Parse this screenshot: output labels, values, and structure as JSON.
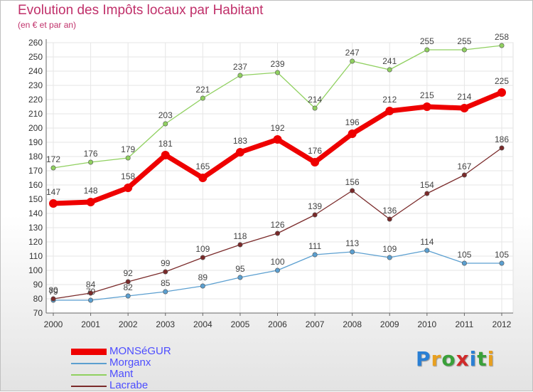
{
  "title": "Evolution des Impôts locaux par Habitant",
  "subtitle": "(en € et par an)",
  "logo": {
    "text": "Proxiti",
    "colors": [
      "#2a7fd4",
      "#e8a020",
      "#3aa03a",
      "#d02a2a",
      "#2a7fd4",
      "#3aa03a",
      "#e8a020"
    ]
  },
  "chart_data": {
    "type": "line",
    "x": [
      2000,
      2001,
      2002,
      2003,
      2004,
      2005,
      2006,
      2007,
      2008,
      2009,
      2010,
      2011,
      2012
    ],
    "ylim": [
      70,
      260
    ],
    "yticks": [
      70,
      80,
      90,
      100,
      110,
      120,
      130,
      140,
      150,
      160,
      170,
      180,
      190,
      200,
      210,
      220,
      230,
      240,
      250,
      260
    ],
    "grid": true,
    "legend_position": "bottom-left",
    "series": [
      {
        "name": "MONSéGUR",
        "color": "#ee0000",
        "values": [
          147,
          148,
          158,
          181,
          165,
          183,
          192,
          176,
          196,
          212,
          215,
          214,
          225
        ]
      },
      {
        "name": "Morganx",
        "color": "#5b9fd0",
        "values": [
          79,
          79,
          82,
          85,
          89,
          95,
          100,
          111,
          113,
          109,
          114,
          105,
          105
        ]
      },
      {
        "name": "Mant",
        "color": "#90d060",
        "values": [
          172,
          176,
          179,
          203,
          221,
          237,
          239,
          214,
          247,
          241,
          255,
          255,
          258
        ]
      },
      {
        "name": "Lacrabe",
        "color": "#7a2a2a",
        "values": [
          80,
          84,
          92,
          99,
          109,
          118,
          126,
          139,
          156,
          136,
          154,
          167,
          186
        ]
      }
    ]
  }
}
